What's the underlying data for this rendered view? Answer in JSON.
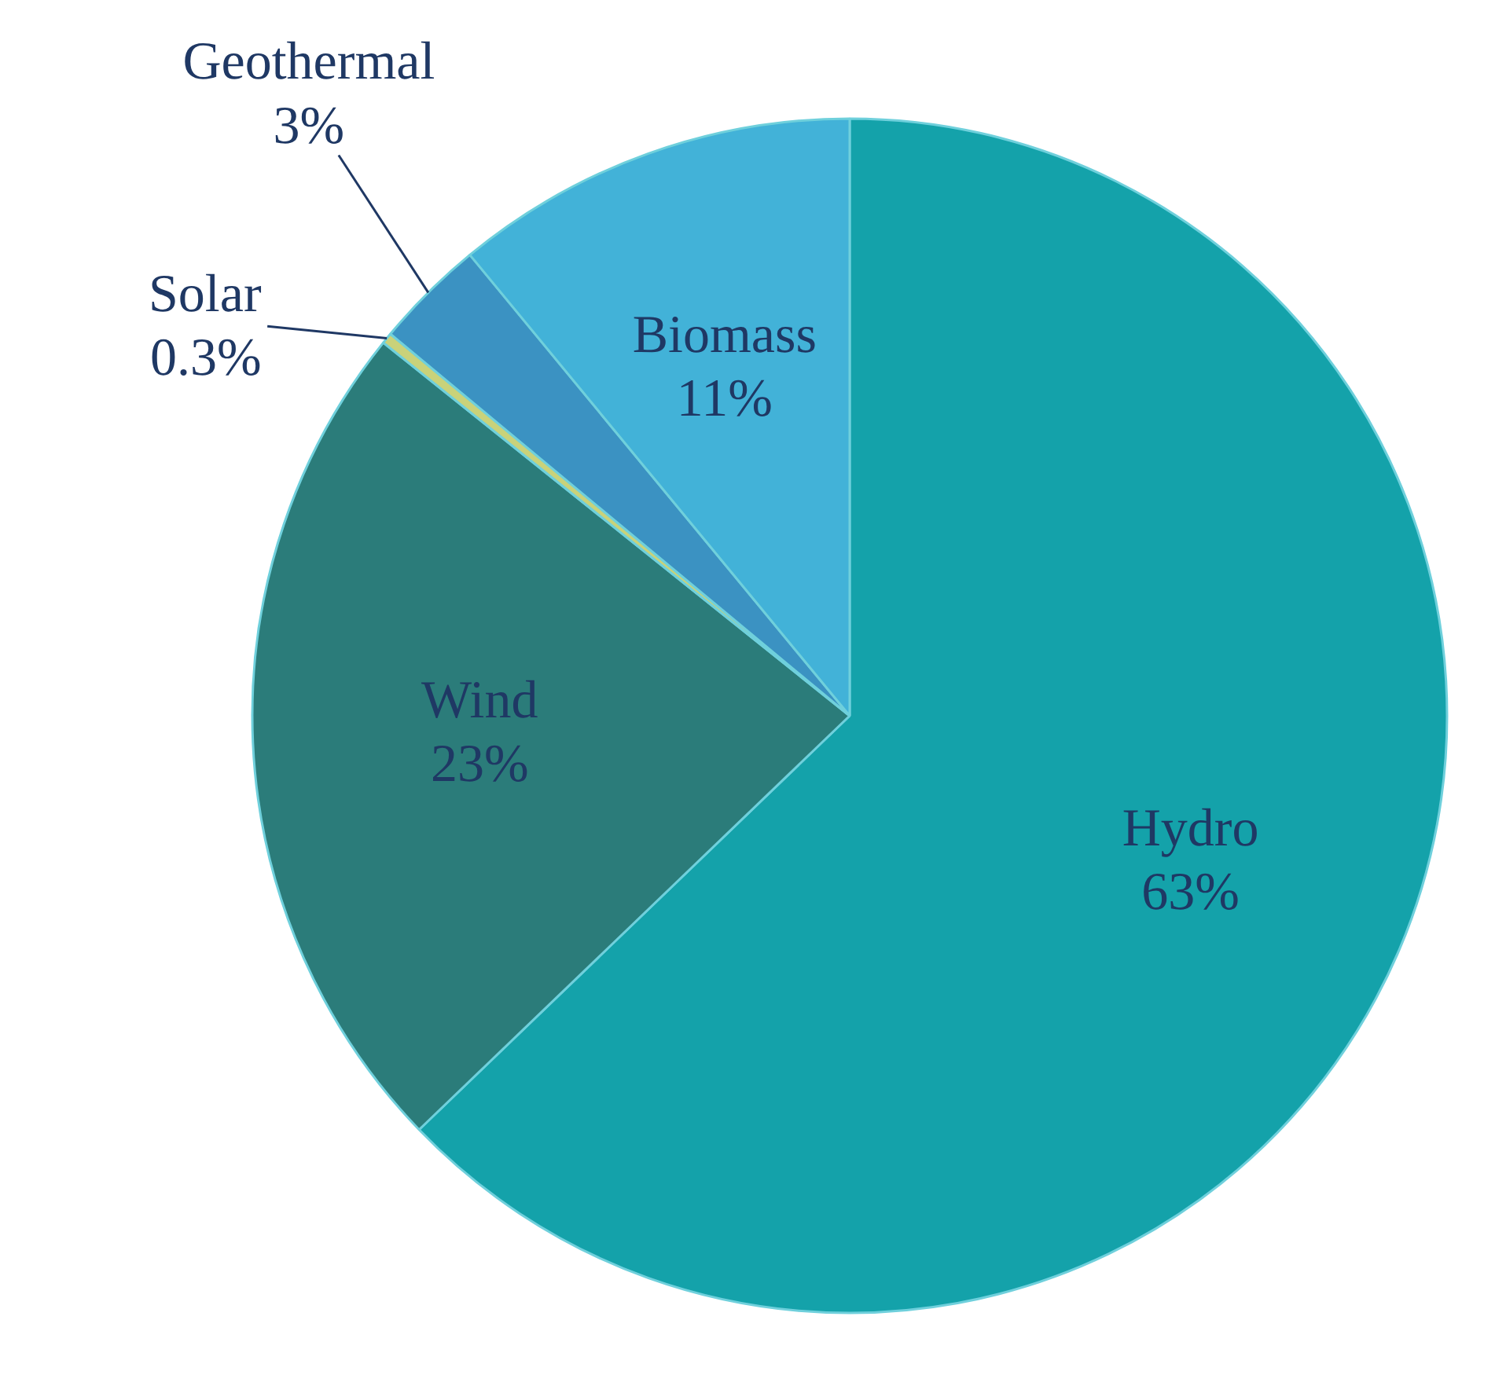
{
  "chart_data": {
    "type": "pie",
    "categories": [
      "Hydro",
      "Wind",
      "Solar",
      "Geothermal",
      "Biomass"
    ],
    "values": [
      63,
      23,
      0.3,
      3,
      11
    ],
    "value_labels": [
      "63%",
      "23%",
      "0.3%",
      "3%",
      "11%"
    ],
    "colors": [
      "#14a2aa",
      "#2b7c7a",
      "#c9d27a",
      "#3b92c2",
      "#42b2d8"
    ]
  }
}
